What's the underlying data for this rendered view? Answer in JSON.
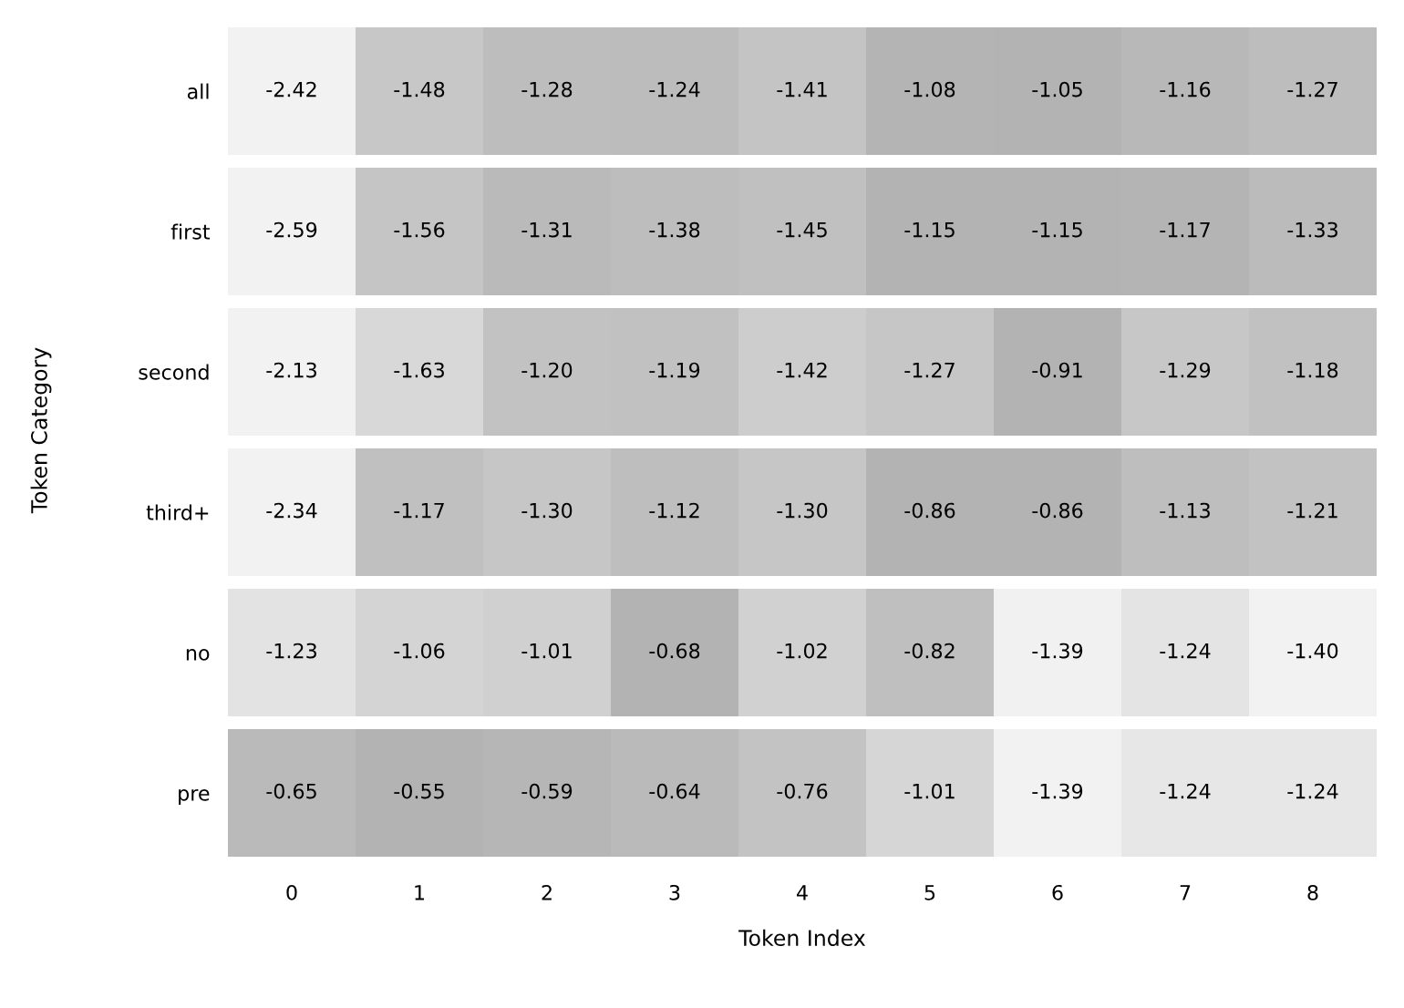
{
  "chart_data": [
    {
      "type": "heatmap",
      "categories": [
        "0",
        "1",
        "2",
        "3",
        "4",
        "5",
        "6",
        "7",
        "8"
      ],
      "y_categories": [
        "all"
      ],
      "cells": [
        [
          -2.42,
          -1.48,
          -1.28,
          -1.24,
          -1.41,
          -1.08,
          -1.05,
          -1.16,
          -1.27
        ]
      ],
      "cell_labels": [
        [
          "-2.42",
          "-1.48",
          "-1.28",
          "-1.24",
          "-1.41",
          "-1.08",
          "-1.05",
          "-1.16",
          "-1.27"
        ]
      ],
      "tick_labels": "y"
    },
    {
      "type": "heatmap",
      "categories": [
        "0",
        "1",
        "2",
        "3",
        "4",
        "5",
        "6",
        "7",
        "8"
      ],
      "y_categories": [
        "first"
      ],
      "cells": [
        [
          -2.59,
          -1.56,
          -1.31,
          -1.38,
          -1.45,
          -1.15,
          -1.15,
          -1.17,
          -1.33
        ]
      ],
      "cell_labels": [
        [
          "-2.59",
          "-1.56",
          "-1.31",
          "-1.38",
          "-1.45",
          "-1.15",
          "-1.15",
          "-1.17",
          "-1.33"
        ]
      ],
      "tick_labels": "y"
    },
    {
      "type": "heatmap",
      "ylabel": "Token Category",
      "categories": [
        "0",
        "1",
        "2",
        "3",
        "4",
        "5",
        "6",
        "7",
        "8"
      ],
      "y_categories": [
        "second"
      ],
      "cells": [
        [
          -2.13,
          -1.63,
          -1.2,
          -1.19,
          -1.42,
          -1.27,
          -0.91,
          -1.29,
          -1.18
        ]
      ],
      "cell_labels": [
        [
          "-2.13",
          "-1.63",
          "-1.20",
          "-1.19",
          "-1.42",
          "-1.27",
          "-0.91",
          "-1.29",
          "-1.18"
        ]
      ],
      "tick_labels": "y"
    },
    {
      "type": "heatmap",
      "categories": [
        "0",
        "1",
        "2",
        "3",
        "4",
        "5",
        "6",
        "7",
        "8"
      ],
      "y_categories": [
        "third+"
      ],
      "cells": [
        [
          -2.34,
          -1.17,
          -1.3,
          -1.12,
          -1.3,
          -0.86,
          -0.86,
          -1.13,
          -1.21
        ]
      ],
      "cell_labels": [
        [
          "-2.34",
          "-1.17",
          "-1.30",
          "-1.12",
          "-1.30",
          "-0.86",
          "-0.86",
          "-1.13",
          "-1.21"
        ]
      ],
      "tick_labels": "y"
    },
    {
      "type": "heatmap",
      "categories": [
        "0",
        "1",
        "2",
        "3",
        "4",
        "5",
        "6",
        "7",
        "8"
      ],
      "y_categories": [
        "no"
      ],
      "cells": [
        [
          -1.23,
          -1.06,
          -1.01,
          -0.68,
          -1.02,
          -0.82,
          -1.39,
          -1.24,
          -1.4
        ]
      ],
      "cell_labels": [
        [
          "-1.23",
          "-1.06",
          "-1.01",
          "-0.68",
          "-1.02",
          "-0.82",
          "-1.39",
          "-1.24",
          "-1.40"
        ]
      ],
      "tick_labels": "y"
    },
    {
      "type": "heatmap",
      "xlabel": "Token Index",
      "categories": [
        "0",
        "1",
        "2",
        "3",
        "4",
        "5",
        "6",
        "7",
        "8"
      ],
      "y_categories": [
        "pre"
      ],
      "cells": [
        [
          -0.65,
          -0.55,
          -0.59,
          -0.64,
          -0.76,
          -1.01,
          -1.39,
          -1.24,
          -1.24
        ]
      ],
      "cell_labels": [
        [
          "-0.65",
          "-0.55",
          "-0.59",
          "-0.64",
          "-0.76",
          "-1.01",
          "-1.39",
          "-1.24",
          "-1.24"
        ]
      ]
    }
  ]
}
